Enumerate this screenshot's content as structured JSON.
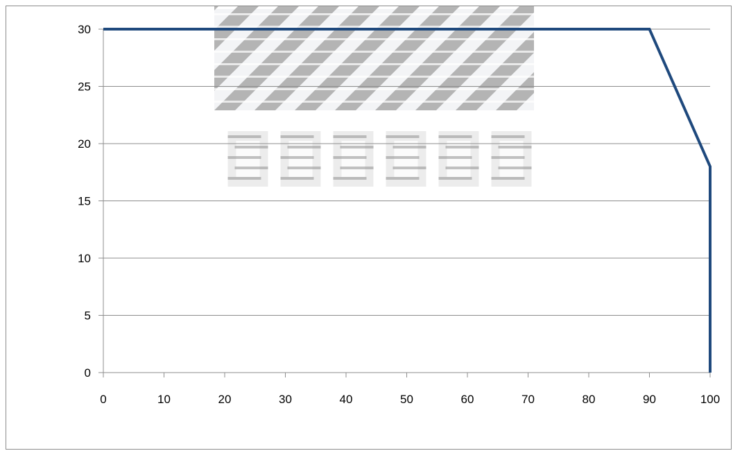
{
  "chart_data": {
    "type": "line",
    "title": "",
    "xlabel": "",
    "ylabel": "",
    "xlim": [
      0,
      100
    ],
    "ylim": [
      0,
      30
    ],
    "x_ticks": [
      "0",
      "10",
      "20",
      "30",
      "40",
      "50",
      "60",
      "70",
      "80",
      "90",
      "100"
    ],
    "y_ticks": [
      "0",
      "5",
      "10",
      "15",
      "20",
      "25",
      "30"
    ],
    "grid": "horizontal",
    "legend": "none",
    "series": [
      {
        "color": "#1f497d",
        "points": [
          {
            "x": 0,
            "y": 30
          },
          {
            "x": 90,
            "y": 30
          },
          {
            "x": 100,
            "y": 18
          },
          {
            "x": 100,
            "y": 0
          }
        ]
      }
    ]
  },
  "watermark": {
    "text": "UNCERT"
  }
}
